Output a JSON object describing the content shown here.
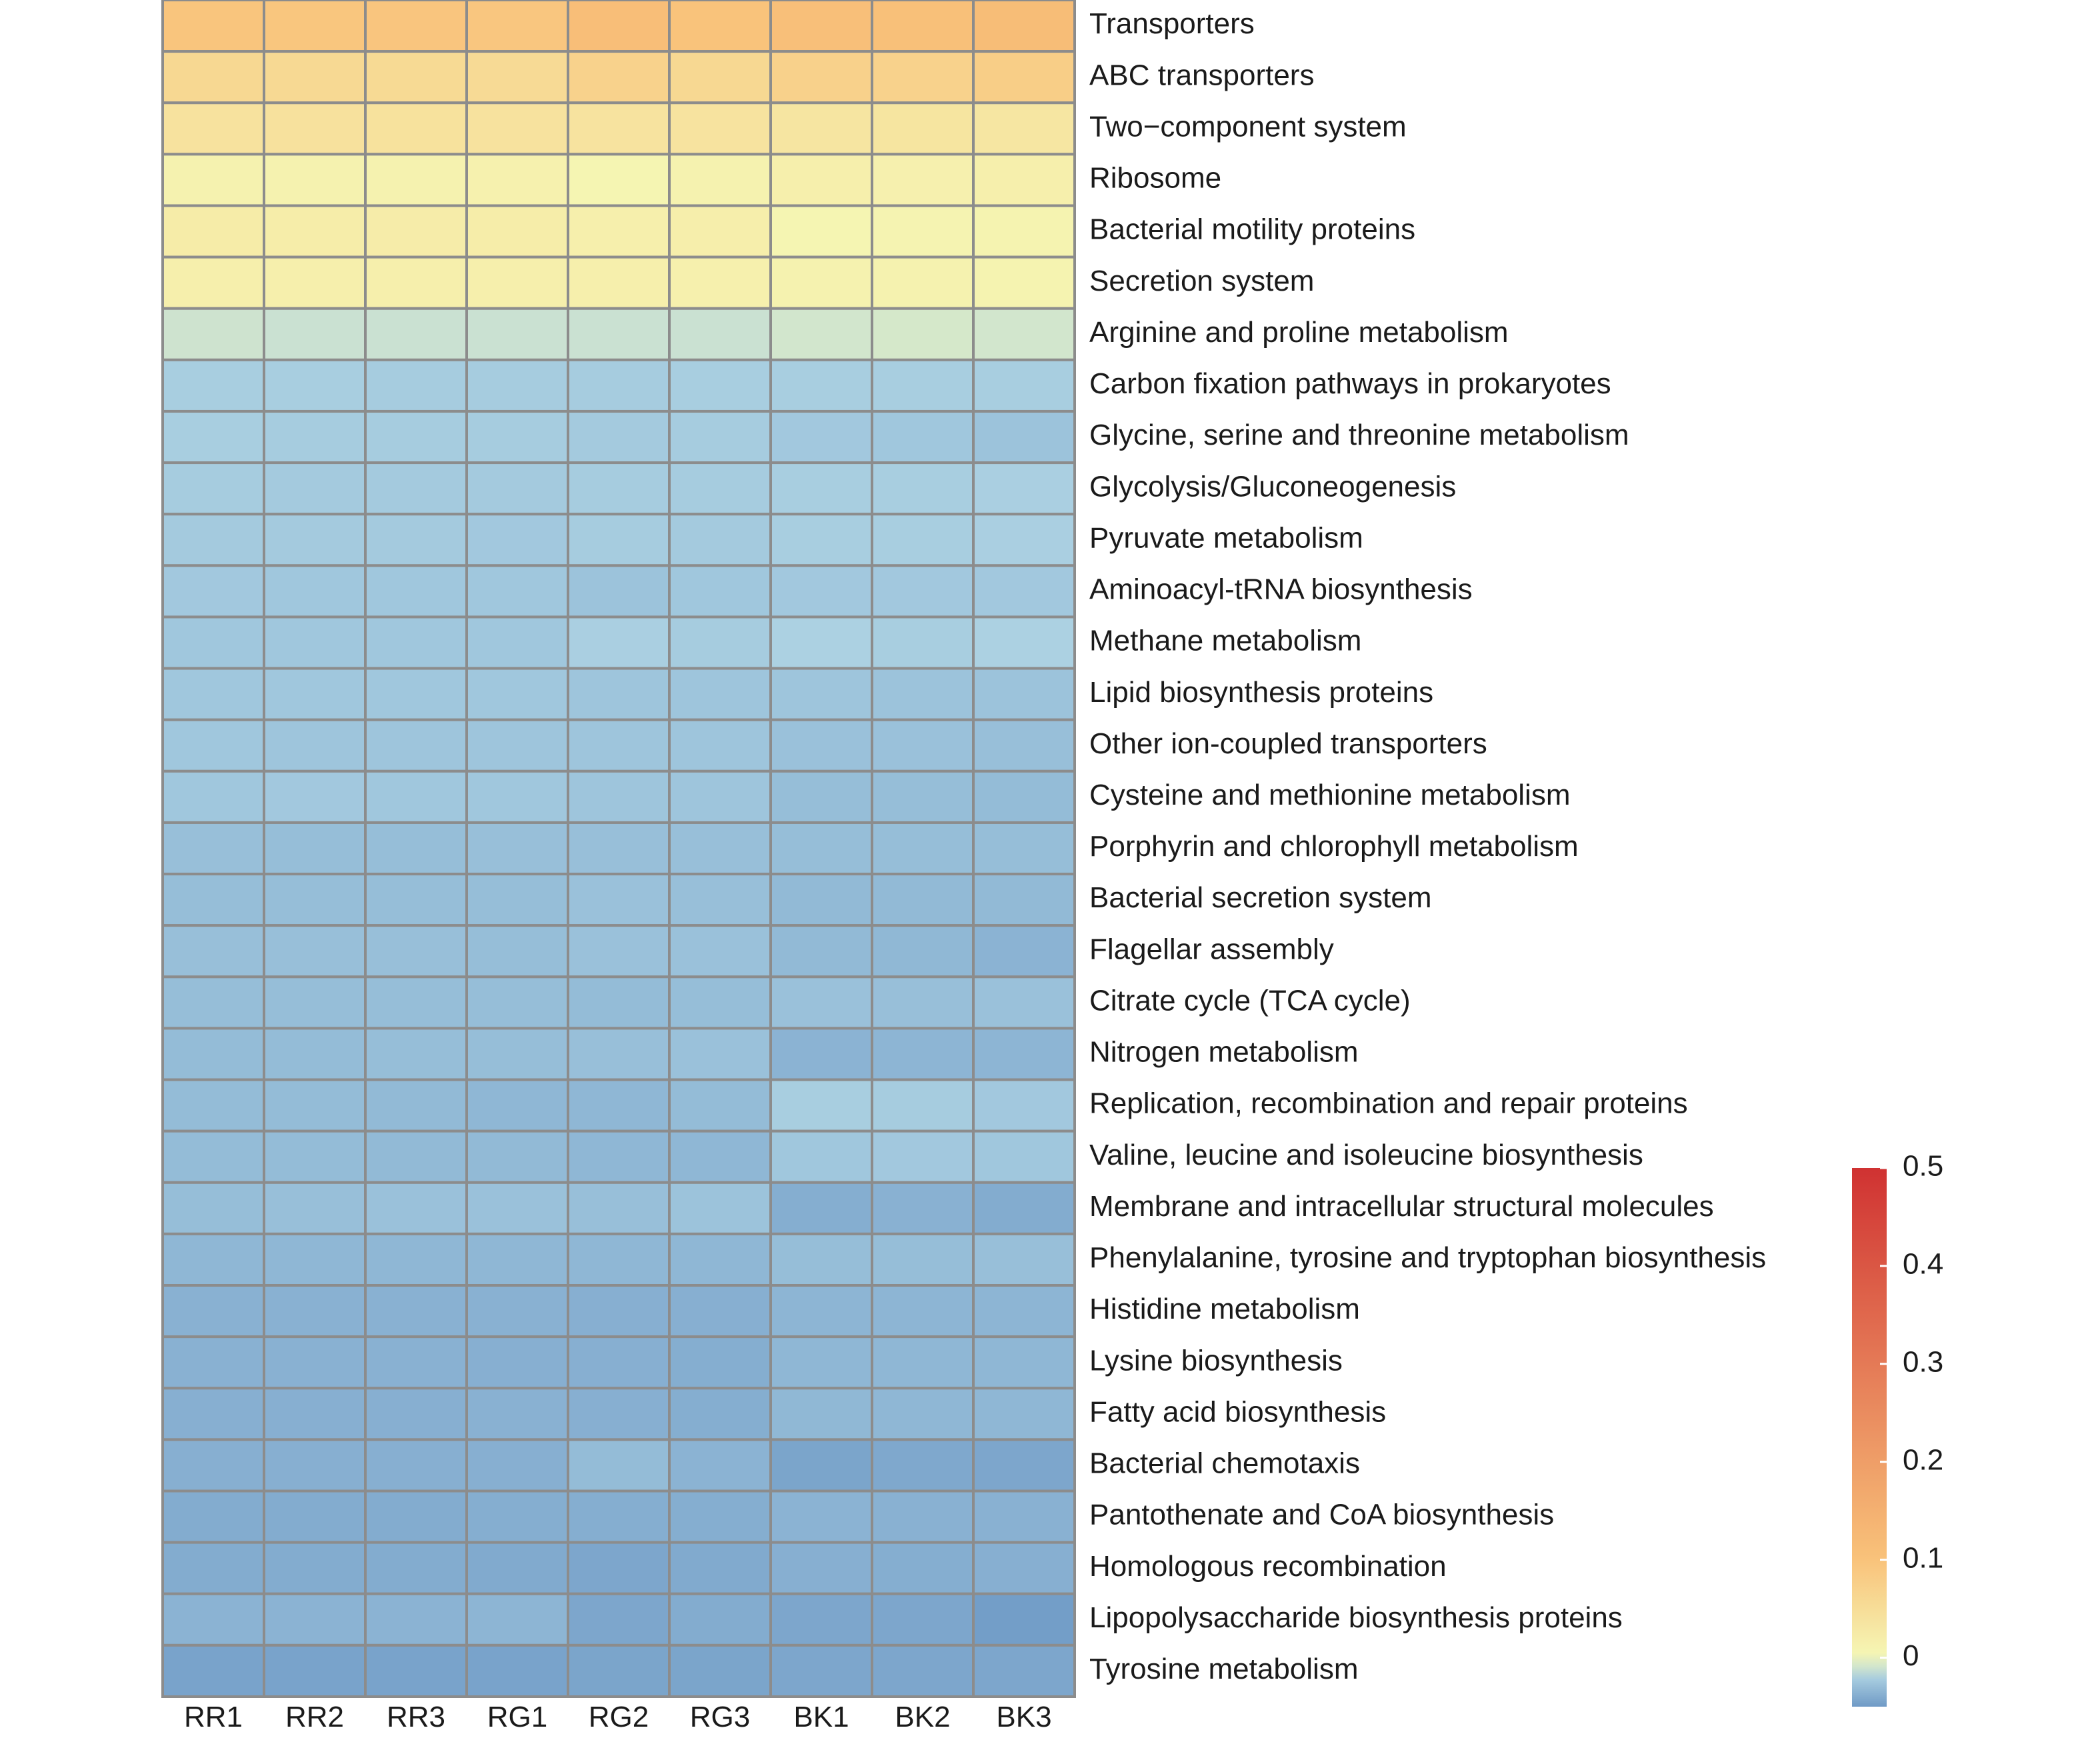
{
  "chart_data": {
    "type": "heatmap",
    "title": "",
    "xlabel": "",
    "ylabel": "",
    "columns": [
      "RR1",
      "RR2",
      "RR3",
      "RG1",
      "RG2",
      "RG3",
      "BK1",
      "BK2",
      "BK3"
    ],
    "rows": [
      "Transporters",
      "ABC transporters",
      "Two−component system",
      "Ribosome",
      "Bacterial motility proteins",
      "Secretion system",
      "Arginine and proline metabolism",
      "Carbon fixation pathways in prokaryotes",
      "Glycine, serine and threonine metabolism",
      "Glycolysis/Gluconeogenesis",
      "Pyruvate metabolism",
      "Aminoacyl-tRNA biosynthesis",
      "Methane metabolism",
      "Lipid biosynthesis proteins",
      "Other ion-coupled transporters",
      "Cysteine and methionine metabolism",
      "Porphyrin and chlorophyll metabolism",
      "Bacterial secretion system",
      "Flagellar assembly",
      "Citrate cycle (TCA cycle)",
      "Nitrogen metabolism",
      "Replication, recombination and repair proteins",
      "Valine, leucine and isoleucine biosynthesis",
      "Membrane and intracellular structural molecules",
      "Phenylalanine, tyrosine and tryptophan biosynthesis",
      "Histidine metabolism",
      "Lysine biosynthesis",
      "Fatty acid biosynthesis",
      "Bacterial chemotaxis",
      "Pantothenate and CoA biosynthesis",
      "Homologous recombination",
      "Lipopolysaccharide biosynthesis proteins",
      "Tyrosine metabolism"
    ],
    "values": [
      [
        0.095,
        0.093,
        0.094,
        0.092,
        0.11,
        0.098,
        0.108,
        0.106,
        0.115
      ],
      [
        0.06,
        0.058,
        0.056,
        0.055,
        0.07,
        0.06,
        0.072,
        0.07,
        0.078
      ],
      [
        0.04,
        0.042,
        0.041,
        0.04,
        0.038,
        0.039,
        0.035,
        0.036,
        0.033
      ],
      [
        0.012,
        0.011,
        0.012,
        0.013,
        0.006,
        0.011,
        0.016,
        0.014,
        0.016
      ],
      [
        0.023,
        0.021,
        0.022,
        0.021,
        0.016,
        0.018,
        0.006,
        0.009,
        0.01
      ],
      [
        0.017,
        0.016,
        0.016,
        0.016,
        0.016,
        0.015,
        0.012,
        0.012,
        0.01
      ],
      [
        -0.01,
        -0.011,
        -0.011,
        -0.011,
        -0.011,
        -0.011,
        -0.009,
        -0.008,
        -0.009
      ],
      [
        -0.021,
        -0.021,
        -0.022,
        -0.022,
        -0.022,
        -0.021,
        -0.021,
        -0.021,
        -0.021
      ],
      [
        -0.021,
        -0.022,
        -0.022,
        -0.022,
        -0.023,
        -0.022,
        -0.024,
        -0.025,
        -0.027
      ],
      [
        -0.022,
        -0.023,
        -0.023,
        -0.023,
        -0.022,
        -0.022,
        -0.021,
        -0.021,
        -0.02
      ],
      [
        -0.023,
        -0.023,
        -0.023,
        -0.024,
        -0.022,
        -0.023,
        -0.021,
        -0.021,
        -0.02
      ],
      [
        -0.024,
        -0.025,
        -0.025,
        -0.025,
        -0.027,
        -0.025,
        -0.024,
        -0.024,
        -0.024
      ],
      [
        -0.025,
        -0.025,
        -0.025,
        -0.025,
        -0.02,
        -0.022,
        -0.019,
        -0.021,
        -0.019
      ],
      [
        -0.025,
        -0.025,
        -0.025,
        -0.025,
        -0.026,
        -0.026,
        -0.026,
        -0.027,
        -0.027
      ],
      [
        -0.025,
        -0.026,
        -0.026,
        -0.026,
        -0.026,
        -0.026,
        -0.028,
        -0.028,
        -0.029
      ],
      [
        -0.025,
        -0.024,
        -0.025,
        -0.025,
        -0.026,
        -0.026,
        -0.03,
        -0.03,
        -0.031
      ],
      [
        -0.029,
        -0.03,
        -0.03,
        -0.029,
        -0.029,
        -0.029,
        -0.03,
        -0.03,
        -0.03
      ],
      [
        -0.03,
        -0.03,
        -0.03,
        -0.03,
        -0.028,
        -0.029,
        -0.032,
        -0.032,
        -0.032
      ],
      [
        -0.029,
        -0.029,
        -0.029,
        -0.03,
        -0.028,
        -0.028,
        -0.032,
        -0.033,
        -0.036
      ],
      [
        -0.03,
        -0.03,
        -0.03,
        -0.03,
        -0.031,
        -0.03,
        -0.028,
        -0.029,
        -0.028
      ],
      [
        -0.031,
        -0.031,
        -0.03,
        -0.03,
        -0.029,
        -0.028,
        -0.036,
        -0.035,
        -0.035
      ],
      [
        -0.031,
        -0.031,
        -0.032,
        -0.034,
        -0.034,
        -0.031,
        -0.021,
        -0.022,
        -0.024
      ],
      [
        -0.031,
        -0.031,
        -0.032,
        -0.032,
        -0.034,
        -0.034,
        -0.025,
        -0.024,
        -0.025
      ],
      [
        -0.03,
        -0.029,
        -0.028,
        -0.028,
        -0.029,
        -0.027,
        -0.039,
        -0.037,
        -0.04
      ],
      [
        -0.034,
        -0.034,
        -0.034,
        -0.034,
        -0.034,
        -0.034,
        -0.03,
        -0.03,
        -0.029
      ],
      [
        -0.037,
        -0.037,
        -0.037,
        -0.037,
        -0.038,
        -0.038,
        -0.035,
        -0.035,
        -0.035
      ],
      [
        -0.037,
        -0.037,
        -0.037,
        -0.038,
        -0.038,
        -0.039,
        -0.034,
        -0.034,
        -0.034
      ],
      [
        -0.038,
        -0.038,
        -0.038,
        -0.037,
        -0.038,
        -0.039,
        -0.033,
        -0.034,
        -0.034
      ],
      [
        -0.038,
        -0.038,
        -0.038,
        -0.038,
        -0.031,
        -0.036,
        -0.044,
        -0.042,
        -0.043
      ],
      [
        -0.04,
        -0.04,
        -0.04,
        -0.039,
        -0.039,
        -0.039,
        -0.036,
        -0.037,
        -0.037
      ],
      [
        -0.04,
        -0.04,
        -0.04,
        -0.041,
        -0.043,
        -0.041,
        -0.038,
        -0.039,
        -0.038
      ],
      [
        -0.036,
        -0.036,
        -0.036,
        -0.035,
        -0.043,
        -0.04,
        -0.043,
        -0.043,
        -0.048
      ],
      [
        -0.045,
        -0.045,
        -0.045,
        -0.045,
        -0.044,
        -0.044,
        -0.043,
        -0.043,
        -0.043
      ]
    ],
    "colorbar": {
      "ticks": [
        "0",
        "0.1",
        "0.2",
        "0.3",
        "0.4",
        "0.5"
      ],
      "range": [
        -0.05,
        0.5
      ],
      "colors": {
        "low": "#6f9ac6",
        "mid_low": "#aed3e3",
        "zero": "#f5f8b6",
        "mid": "#f9c27a",
        "high": "#d03232"
      }
    },
    "grid_color": "#8c8c8c",
    "legend_position": "right"
  }
}
